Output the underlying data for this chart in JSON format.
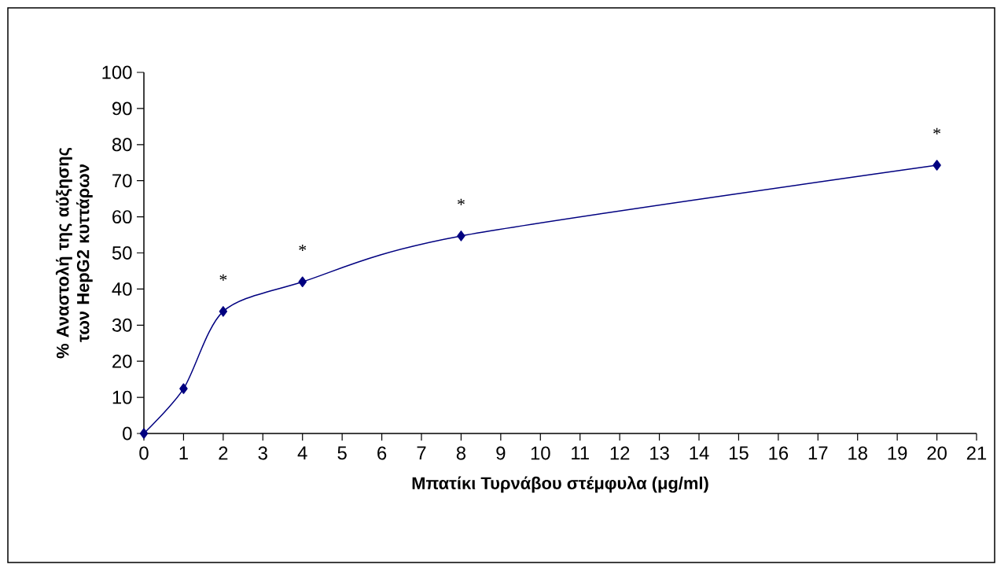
{
  "chart_data": {
    "type": "line",
    "xlabel": "Μπατίκι Τυρνάβου στέμφυλα (μg/ml)",
    "ylabel": "% Αναστολή της αύξησης των HepG2 κυττάρων",
    "x": [
      0,
      1,
      2,
      4,
      8,
      20
    ],
    "series": [
      {
        "color": "#000080",
        "values": [
          0,
          12.4,
          33.8,
          42.0,
          54.7,
          74.3
        ]
      }
    ],
    "xlim": [
      0,
      21
    ],
    "xticks": [
      0,
      1,
      2,
      3,
      4,
      5,
      6,
      7,
      8,
      9,
      10,
      11,
      12,
      13,
      14,
      15,
      16,
      17,
      18,
      19,
      20,
      21
    ],
    "ylim": [
      0,
      100
    ],
    "yticks": [
      0,
      10,
      20,
      30,
      40,
      50,
      60,
      70,
      80,
      90,
      100
    ],
    "marker": "diamond",
    "line_style": "solid",
    "annotations": [
      {
        "text": "*",
        "x": 2,
        "y": 33.8
      },
      {
        "text": "*",
        "x": 4,
        "y": 42.0
      },
      {
        "text": "*",
        "x": 8,
        "y": 54.7
      },
      {
        "text": "*",
        "x": 20,
        "y": 74.3
      }
    ]
  }
}
